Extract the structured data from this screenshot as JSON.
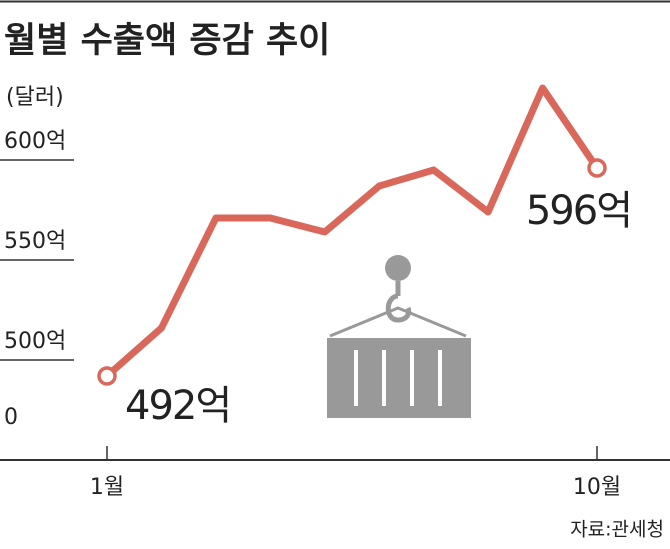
{
  "chart_data": {
    "type": "line",
    "title": "월별 수출액 증감 추이",
    "y_label": "(달러)",
    "categories": [
      "1월",
      null,
      null,
      null,
      null,
      null,
      null,
      null,
      null,
      "10월"
    ],
    "series": [
      {
        "name": null,
        "color": "#d9685a",
        "values": [
          492,
          516,
          571,
          571,
          564,
          587,
          595,
          574,
          636,
          596
        ],
        "value_labels": [
          "492억",
          null,
          null,
          null,
          null,
          null,
          null,
          null,
          null,
          "596억"
        ]
      }
    ],
    "ylim": [
      450,
      640
    ],
    "axis_break": true,
    "yticks": [
      0,
      {
        "value": 500,
        "label": "500억"
      },
      {
        "value": 550,
        "label": "550억"
      },
      {
        "value": 600,
        "label": "600억"
      }
    ],
    "source": "자료:관세청"
  }
}
